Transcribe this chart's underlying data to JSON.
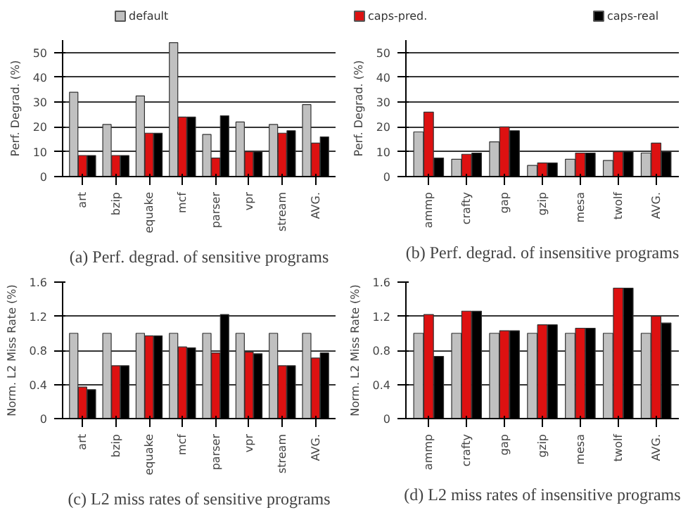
{
  "chart_data": [
    {
      "type": "bar",
      "title": "(a) Perf. degrad. of sensitive programs",
      "ylabel": "Perf. Degrad. (%)",
      "categories": [
        "art",
        "bzip",
        "equake",
        "mcf",
        "parser",
        "vpr",
        "stream",
        "AVG."
      ],
      "ylim": [
        0,
        55
      ],
      "yticks": [
        0,
        10,
        20,
        30,
        40,
        50
      ],
      "grid": "y",
      "legend": "top",
      "series": [
        {
          "name": "default",
          "color": "#c0c0c0",
          "values": [
            34,
            21,
            32.5,
            54,
            17,
            22,
            21,
            29
          ]
        },
        {
          "name": "caps-pred.",
          "color": "#dd1111",
          "values": [
            8.5,
            8.5,
            17.5,
            24,
            7.5,
            10,
            17.5,
            13.5
          ]
        },
        {
          "name": "caps-real",
          "color": "#000000",
          "values": [
            8.5,
            8.5,
            17.5,
            24,
            24.5,
            10,
            18.5,
            16
          ]
        }
      ]
    },
    {
      "type": "bar",
      "title": "(b) Perf. degrad. of insensitive programs",
      "ylabel": "Perf. Degrad. (%)",
      "categories": [
        "ammp",
        "crafty",
        "gap",
        "gzip",
        "mesa",
        "twolf",
        "AVG."
      ],
      "ylim": [
        0,
        55
      ],
      "yticks": [
        0,
        10,
        20,
        30,
        40,
        50
      ],
      "grid": "y",
      "series": [
        {
          "color": "#c0c0c0",
          "values": [
            18,
            7,
            14,
            4.5,
            7,
            6.5,
            9.5
          ]
        },
        {
          "color": "#dd1111",
          "values": [
            26,
            9,
            20,
            5.5,
            9.5,
            10,
            13.5
          ]
        },
        {
          "color": "#000000",
          "values": [
            7.5,
            9.5,
            18.5,
            5.5,
            9.5,
            10,
            10
          ]
        }
      ]
    },
    {
      "type": "bar",
      "title": "(c) L2 miss rates of sensitive programs",
      "ylabel": "Norm. L2 Miss Rate (%)",
      "categories": [
        "art",
        "bzip",
        "equake",
        "mcf",
        "parser",
        "vpr",
        "stream",
        "AVG."
      ],
      "ylim": [
        0,
        1.6
      ],
      "yticks": [
        0,
        0.4,
        0.8,
        1.2,
        1.6
      ],
      "grid": "y",
      "series": [
        {
          "color": "#c0c0c0",
          "values": [
            1,
            1,
            1,
            1,
            1,
            1,
            1,
            1
          ]
        },
        {
          "color": "#dd1111",
          "values": [
            0.37,
            0.62,
            0.97,
            0.84,
            0.77,
            0.78,
            0.62,
            0.71
          ]
        },
        {
          "color": "#000000",
          "values": [
            0.34,
            0.62,
            0.97,
            0.83,
            1.22,
            0.76,
            0.62,
            0.77
          ]
        }
      ]
    },
    {
      "type": "bar",
      "title": "(d) L2 miss rates of insensitive programs",
      "ylabel": "Norm. L2 Miss Rate (%)",
      "categories": [
        "ammp",
        "crafty",
        "gap",
        "gzip",
        "mesa",
        "twolf",
        "AVG."
      ],
      "ylim": [
        0,
        1.6
      ],
      "yticks": [
        0,
        0.4,
        0.8,
        1.2,
        1.6
      ],
      "grid": "y",
      "series": [
        {
          "color": "#c0c0c0",
          "values": [
            1,
            1,
            1,
            1,
            1,
            1,
            1
          ]
        },
        {
          "color": "#dd1111",
          "values": [
            1.22,
            1.26,
            1.03,
            1.1,
            1.06,
            1.53,
            1.2
          ]
        },
        {
          "color": "#000000",
          "values": [
            0.73,
            1.26,
            1.03,
            1.1,
            1.06,
            1.53,
            1.12
          ]
        }
      ]
    }
  ]
}
